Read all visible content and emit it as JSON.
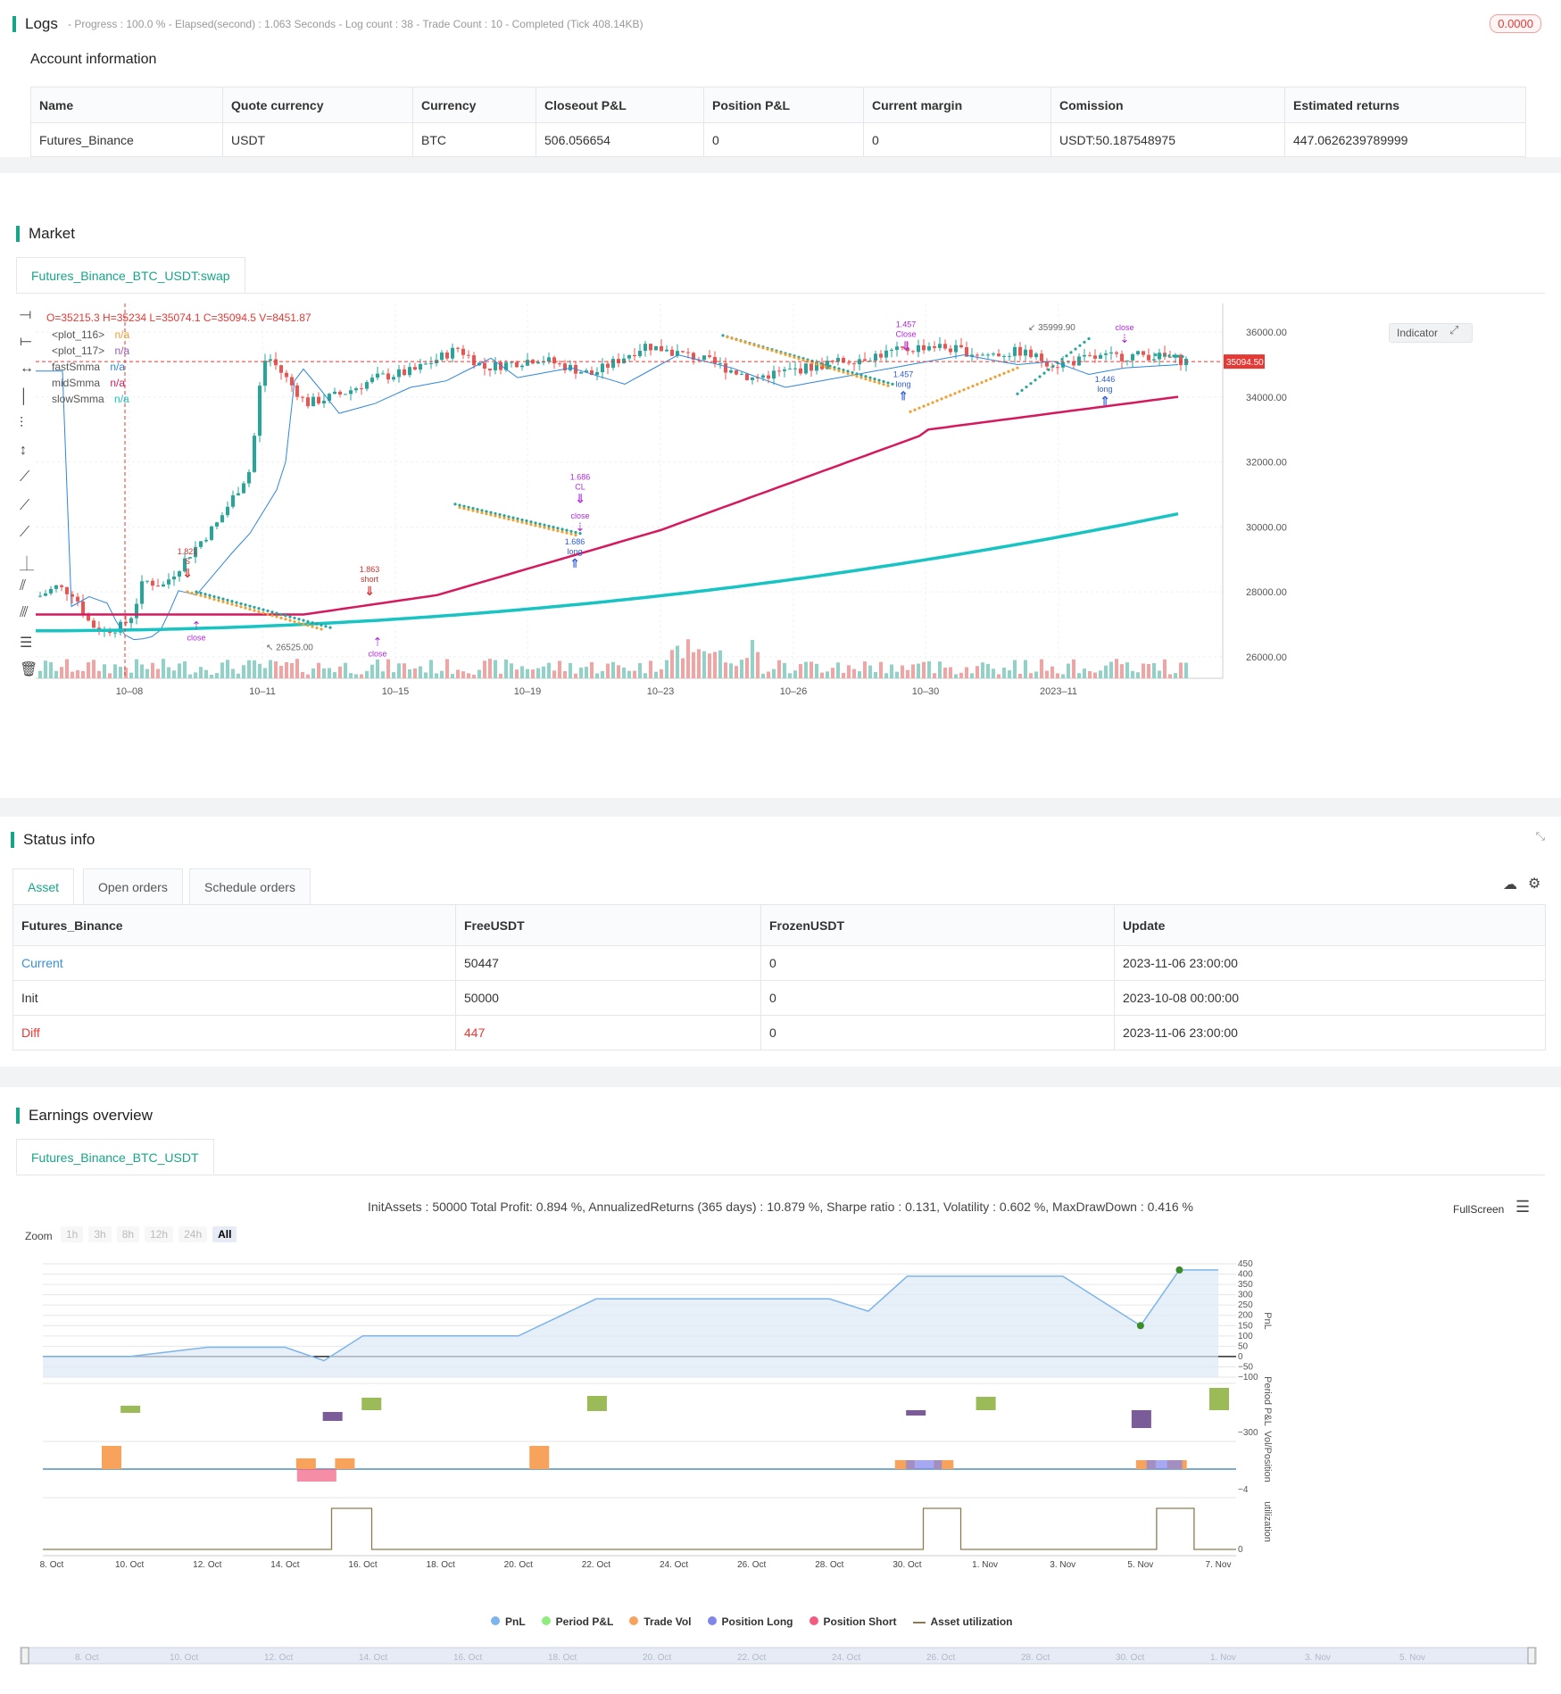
{
  "logs": {
    "title": "Logs",
    "status": "- Progress : 100.0 % - Elapsed(second) : 1.063 Seconds - Log count : 38 - Trade Count : 10 - Completed (Tick 408.14KB)",
    "badge": "0.0000"
  },
  "account": {
    "title": "Account information",
    "headers": [
      "Name",
      "Quote currency",
      "Currency",
      "Closeout P&L",
      "Position P&L",
      "Current margin",
      "Comission",
      "Estimated returns"
    ],
    "row": [
      "Futures_Binance",
      "USDT",
      "BTC",
      "506.056654",
      "0",
      "0",
      "USDT:50.187548975",
      "447.0626239789999"
    ]
  },
  "market": {
    "title": "Market",
    "tab": "Futures_Binance_BTC_USDT:swap",
    "ohlc": "O=35215.3 H=35234 L=35074.1 C=35094.5 V=8451.87",
    "indicator_button": "Indicator",
    "legend": [
      {
        "name": "<plot_116>",
        "value": "n/a",
        "color": "#f0a030"
      },
      {
        "name": "<plot_117>",
        "value": "n/a",
        "color": "#9b59b6"
      },
      {
        "name": "fastSmma",
        "value": "n/a",
        "color": "#2e86de"
      },
      {
        "name": "midSmma",
        "value": "n/a",
        "color": "#d6185e"
      },
      {
        "name": "slowSmma",
        "value": "n/a",
        "color": "#17c3c3"
      }
    ],
    "price_ticks": [
      "36000.00",
      "34000.00",
      "32000.00",
      "30000.00",
      "28000.00",
      "26000.00"
    ],
    "last_price": "35094.50",
    "date_ticks": [
      "10–08",
      "10–11",
      "10–15",
      "10–19",
      "10–23",
      "10–26",
      "10–30",
      "2023–11"
    ],
    "annotations": {
      "high_label": "35999.90",
      "low_label": "26525.00",
      "signals": [
        {
          "label": "1.821",
          "sub": "S",
          "kind": "short"
        },
        {
          "label": "1.863",
          "sub": "short",
          "kind": "short"
        },
        {
          "label": "1.686",
          "sub": "CL",
          "kind": "close"
        },
        {
          "label": "1.686",
          "sub": "long",
          "kind": "long"
        },
        {
          "label": "1.457",
          "sub": "Close",
          "kind": "close"
        },
        {
          "label": "1.457",
          "sub": "long",
          "kind": "long"
        },
        {
          "label": "1.446",
          "sub": "long",
          "kind": "long"
        }
      ],
      "close_labels": [
        "close",
        "close",
        "close",
        "close"
      ]
    }
  },
  "status": {
    "title": "Status info",
    "tabs": [
      "Asset",
      "Open orders",
      "Schedule orders"
    ],
    "headers": [
      "Futures_Binance",
      "FreeUSDT",
      "FrozenUSDT",
      "Update"
    ],
    "rows": [
      [
        "Current",
        "50447",
        "0",
        "2023-11-06 23:00:00"
      ],
      [
        "Init",
        "50000",
        "0",
        "2023-10-08 00:00:00"
      ],
      [
        "Diff",
        "447",
        "0",
        "2023-11-06 23:00:00"
      ]
    ]
  },
  "earnings": {
    "title": "Earnings overview",
    "tab": "Futures_Binance_BTC_USDT",
    "summary": "InitAssets : 50000 Total Profit: 0.894 %, AnnualizedReturns (365 days) : 10.879 %, Sharpe ratio : 0.131, Volatility : 0.602 %, MaxDrawDown : 0.416 %",
    "fullscreen": "FullScreen",
    "zoom_label": "Zoom",
    "zoom_options": [
      "1h",
      "3h",
      "8h",
      "12h",
      "24h",
      "All"
    ],
    "pnl_ticks": [
      "450",
      "400",
      "350",
      "300",
      "250",
      "200",
      "150",
      "100",
      "50",
      "0",
      "−50",
      "−100"
    ],
    "axis_titles": [
      "PnL",
      "Period P&L",
      "Vol/Position",
      "utilization"
    ],
    "period_tick": "−300",
    "vol_tick": "−4",
    "util_tick": "0",
    "x_ticks": [
      "8. Oct",
      "10. Oct",
      "12. Oct",
      "14. Oct",
      "16. Oct",
      "18. Oct",
      "20. Oct",
      "22. Oct",
      "24. Oct",
      "26. Oct",
      "28. Oct",
      "30. Oct",
      "1. Nov",
      "3. Nov",
      "5. Nov",
      "7. Nov"
    ],
    "legend": [
      {
        "name": "PnL",
        "color": "#7cb5ec"
      },
      {
        "name": "Period P&L",
        "color": "#90ed7d"
      },
      {
        "name": "Trade Vol",
        "color": "#f7a35c"
      },
      {
        "name": "Position Long",
        "color": "#8085e9"
      },
      {
        "name": "Position Short",
        "color": "#f15c80"
      },
      {
        "name": "Asset utilization",
        "color": "#8d7a4f"
      }
    ],
    "navigator_ticks": [
      "8. Oct",
      "10. Oct",
      "12. Oct",
      "14. Oct",
      "16. Oct",
      "18. Oct",
      "20. Oct",
      "22. Oct",
      "24. Oct",
      "26. Oct",
      "28. Oct",
      "30. Oct",
      "1. Nov",
      "3. Nov",
      "5. Nov"
    ]
  },
  "chart_data": {
    "type": "line",
    "title": "",
    "x": [
      "8. Oct",
      "10. Oct",
      "12. Oct",
      "14. Oct",
      "15. Oct",
      "16. Oct",
      "20. Oct",
      "22. Oct",
      "28. Oct",
      "29. Oct",
      "30. Oct",
      "1. Nov",
      "3. Nov",
      "5. Nov",
      "6. Nov",
      "7. Nov"
    ],
    "series": [
      {
        "name": "PnL",
        "values": [
          0,
          0,
          45,
          45,
          -20,
          100,
          100,
          280,
          280,
          220,
          390,
          390,
          390,
          150,
          420,
          420
        ]
      }
    ],
    "ylim": [
      -100,
      450
    ],
    "grid": true,
    "legend": "bottom"
  }
}
